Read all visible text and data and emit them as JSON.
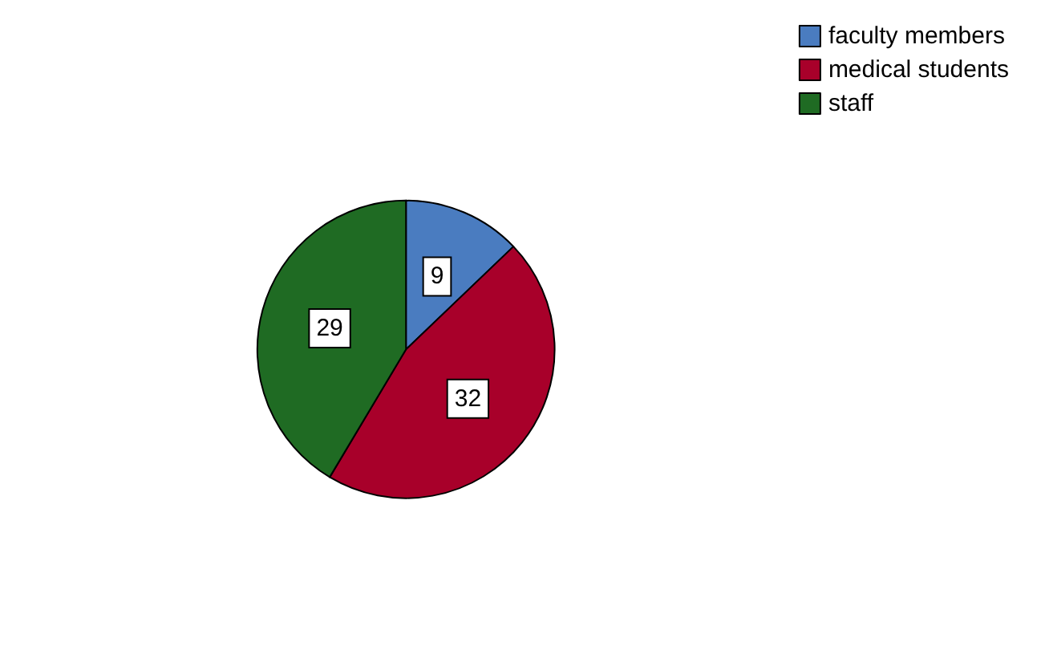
{
  "chart_data": {
    "type": "pie",
    "categories": [
      "faculty members",
      "medical students",
      "staff"
    ],
    "values": [
      9,
      32,
      29
    ],
    "colors": [
      "#4a7cc0",
      "#a8002a",
      "#1f6b23"
    ],
    "data_labels": true,
    "legend": "top right"
  }
}
